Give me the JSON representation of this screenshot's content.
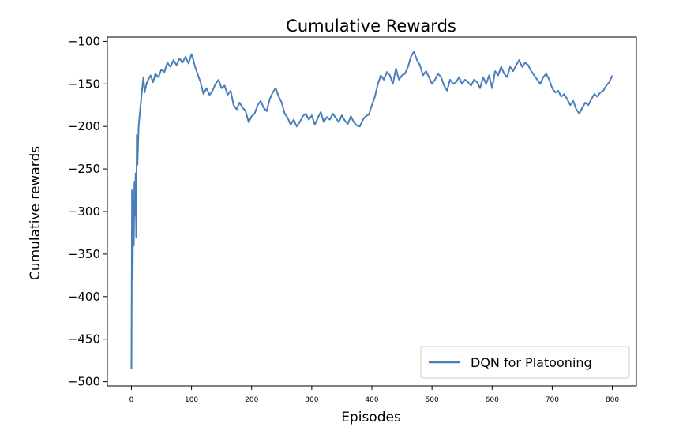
{
  "chart_data": {
    "type": "line",
    "title": "Cumulative Rewards",
    "xlabel": "Episodes",
    "ylabel": "Cumulative rewards",
    "xlim": [
      -40,
      840
    ],
    "ylim": [
      -505,
      -95
    ],
    "xticks": [
      0,
      100,
      200,
      300,
      400,
      500,
      600,
      700,
      800
    ],
    "yticks": [
      -100,
      -150,
      -200,
      -250,
      -300,
      -350,
      -400,
      -450,
      -500
    ],
    "xtick_labels": [
      "0",
      "100",
      "200",
      "300",
      "400",
      "500",
      "600",
      "700",
      "800"
    ],
    "ytick_labels": [
      "−100",
      "−150",
      "−200",
      "−250",
      "−300",
      "−350",
      "−400",
      "−450",
      "−500"
    ],
    "grid": false,
    "legend_position": "lower-right",
    "colors": {
      "line": "#4a7ebb"
    },
    "series": [
      {
        "name": "DQN for Platooning",
        "x": [
          0,
          1,
          2,
          3,
          4,
          5,
          6,
          7,
          8,
          9,
          10,
          12,
          14,
          16,
          18,
          20,
          22,
          25,
          28,
          32,
          36,
          40,
          45,
          50,
          55,
          60,
          65,
          70,
          75,
          80,
          85,
          90,
          95,
          100,
          103,
          106,
          110,
          115,
          120,
          125,
          130,
          135,
          140,
          145,
          150,
          155,
          160,
          165,
          170,
          175,
          180,
          185,
          190,
          195,
          200,
          205,
          210,
          215,
          220,
          225,
          230,
          235,
          240,
          245,
          250,
          255,
          260,
          265,
          270,
          275,
          280,
          285,
          290,
          295,
          300,
          305,
          310,
          315,
          320,
          325,
          330,
          335,
          340,
          345,
          350,
          355,
          360,
          365,
          370,
          375,
          380,
          385,
          390,
          395,
          400,
          405,
          410,
          415,
          420,
          425,
          430,
          435,
          440,
          445,
          450,
          455,
          460,
          465,
          470,
          475,
          480,
          485,
          490,
          495,
          500,
          505,
          510,
          515,
          520,
          525,
          530,
          535,
          540,
          545,
          550,
          555,
          560,
          565,
          570,
          575,
          580,
          585,
          590,
          595,
          600,
          605,
          610,
          615,
          620,
          625,
          630,
          635,
          640,
          645,
          650,
          655,
          660,
          665,
          670,
          675,
          680,
          685,
          690,
          695,
          700,
          705,
          710,
          715,
          720,
          725,
          730,
          735,
          740,
          745,
          750,
          755,
          760,
          765,
          770,
          775,
          780,
          785,
          790,
          795,
          800
        ],
        "y": [
          -485,
          -275,
          -380,
          -290,
          -340,
          -265,
          -305,
          -255,
          -330,
          -210,
          -245,
          -200,
          -185,
          -170,
          -155,
          -142,
          -160,
          -150,
          -145,
          -140,
          -148,
          -138,
          -142,
          -133,
          -136,
          -125,
          -130,
          -122,
          -128,
          -120,
          -125,
          -118,
          -126,
          -115,
          -122,
          -130,
          -138,
          -148,
          -162,
          -155,
          -163,
          -158,
          -150,
          -145,
          -155,
          -152,
          -163,
          -158,
          -175,
          -180,
          -172,
          -178,
          -182,
          -195,
          -188,
          -185,
          -175,
          -170,
          -178,
          -182,
          -168,
          -160,
          -155,
          -165,
          -172,
          -185,
          -190,
          -198,
          -192,
          -200,
          -195,
          -188,
          -185,
          -192,
          -187,
          -198,
          -190,
          -183,
          -195,
          -189,
          -192,
          -185,
          -190,
          -195,
          -187,
          -193,
          -197,
          -188,
          -195,
          -199,
          -200,
          -192,
          -188,
          -186,
          -175,
          -165,
          -150,
          -140,
          -145,
          -136,
          -140,
          -150,
          -132,
          -145,
          -140,
          -138,
          -130,
          -118,
          -112,
          -122,
          -128,
          -140,
          -135,
          -142,
          -150,
          -145,
          -138,
          -142,
          -152,
          -158,
          -145,
          -150,
          -148,
          -142,
          -150,
          -145,
          -148,
          -152,
          -145,
          -148,
          -155,
          -142,
          -150,
          -140,
          -155,
          -135,
          -140,
          -130,
          -138,
          -142,
          -130,
          -135,
          -128,
          -122,
          -130,
          -125,
          -128,
          -135,
          -140,
          -145,
          -150,
          -142,
          -138,
          -145,
          -155,
          -160,
          -158,
          -165,
          -162,
          -168,
          -175,
          -170,
          -180,
          -185,
          -178,
          -172,
          -175,
          -168,
          -162,
          -165,
          -160,
          -158,
          -152,
          -148,
          -140
        ]
      }
    ]
  }
}
